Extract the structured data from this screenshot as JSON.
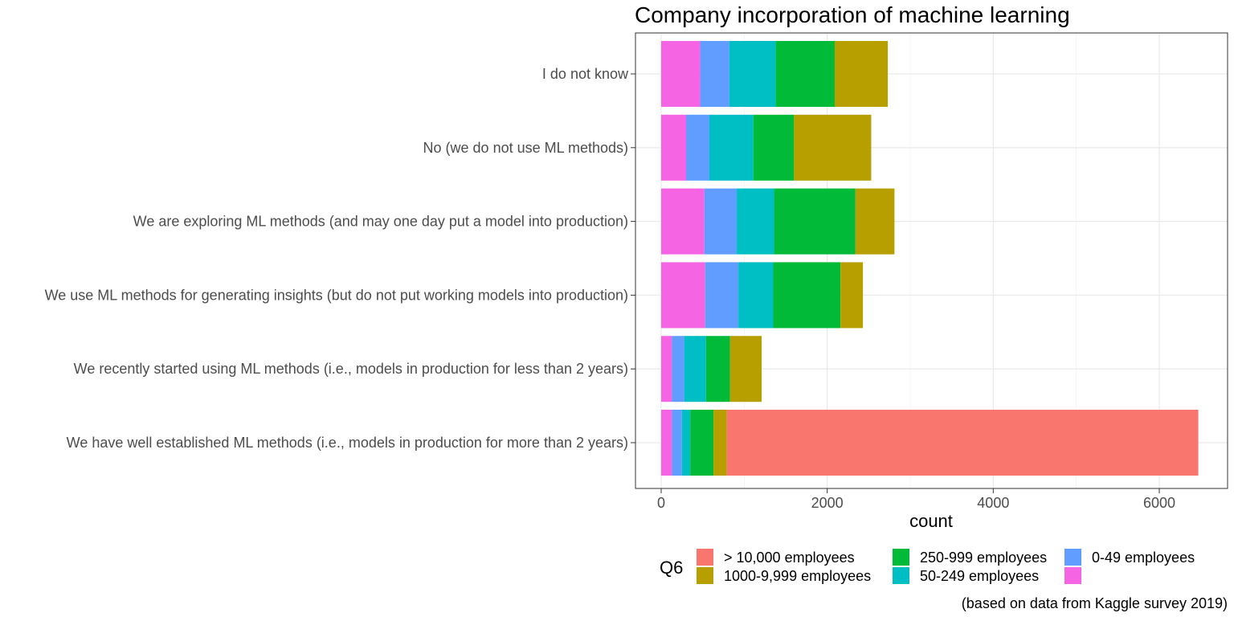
{
  "chart_data": {
    "type": "bar",
    "orientation": "horizontal",
    "stacked": true,
    "title": "Company incorporation of machine learning",
    "xlabel": "count",
    "ylabel": "",
    "xlim": [
      0,
      6800
    ],
    "xticks": [
      0,
      2000,
      4000,
      6000
    ],
    "grid": true,
    "legend": {
      "title": "Q6",
      "position": "bottom",
      "entries": [
        {
          "label": "> 10,000 employees",
          "color": "#F8766D"
        },
        {
          "label": "1000-9,999 employees",
          "color": "#B79F00"
        },
        {
          "label": "250-999 employees",
          "color": "#00BA38"
        },
        {
          "label": "50-249 employees",
          "color": "#00BFC4"
        },
        {
          "label": "0-49 employees",
          "color": "#619CFF"
        },
        {
          "label": "",
          "color": "#F564E3"
        }
      ]
    },
    "caption": "(based on data from Kaggle survey 2019)",
    "categories": [
      "I do not know",
      "No (we do not use ML methods)",
      "We are exploring ML methods (and may one day put a model into production)",
      "We use ML methods for generating insights (but do not put working models into production)",
      "We recently started using ML methods (i.e., models in production for less than 2 years)",
      "We have well established ML methods (i.e., models in production for more than 2 years)"
    ],
    "series": [
      {
        "name": "",
        "color": "#F564E3",
        "values": [
          470,
          300,
          520,
          530,
          130,
          130
        ]
      },
      {
        "name": "0-49 employees",
        "color": "#619CFF",
        "values": [
          350,
          280,
          390,
          400,
          150,
          120
        ]
      },
      {
        "name": "50-249 employees",
        "color": "#00BFC4",
        "values": [
          560,
          530,
          450,
          420,
          260,
          100
        ]
      },
      {
        "name": "250-999 employees",
        "color": "#00BA38",
        "values": [
          710,
          490,
          980,
          810,
          290,
          280
        ]
      },
      {
        "name": "1000-9,999 employees",
        "color": "#B79F00",
        "values": [
          640,
          930,
          470,
          270,
          380,
          160
        ]
      },
      {
        "name": "> 10,000 employees",
        "color": "#F8766D",
        "values": [
          0,
          0,
          0,
          0,
          0,
          5680
        ]
      }
    ]
  }
}
